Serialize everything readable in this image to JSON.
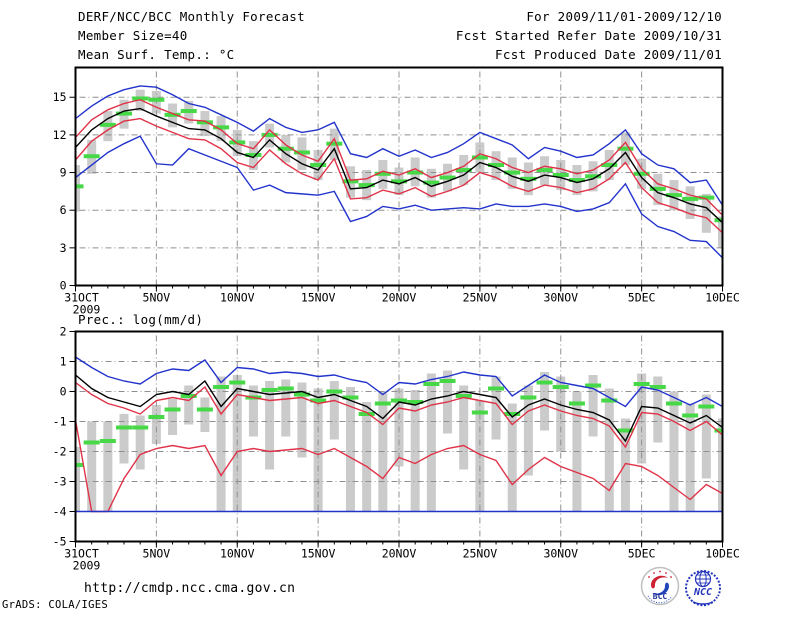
{
  "header": {
    "title": "DERF/NCC/BCC Monthly Forecast",
    "member_size": "Member Size=40",
    "top_var_label": "Mean Surf. Temp.: °C",
    "for_range": "For 2009/11/01-2009/12/10",
    "refer_date": "Fcst Started Refer Date 2009/10/31",
    "produced_date": "Fcst Produced Date 2009/11/01"
  },
  "bottom_var_label": "Prec.: log(mm/d)",
  "footer": {
    "url": "http://cmdp.ncc.cma.gov.cn",
    "grads_credit": "GrADS: COLA/IGES",
    "logo_bcc": "BCC",
    "logo_ncc": "NCC"
  },
  "colors": {
    "line_max_min": "#2233cc",
    "line_quartile": "#e03348",
    "line_mean": "#000000",
    "green_marker": "#46d846",
    "bar_fill": "#cbcbcb",
    "gridline": "#909090",
    "frame": "#000000"
  },
  "chart_data": [
    {
      "type": "line",
      "title": "Mean Surf. Temp.: °C",
      "x_start_label": "31OCT",
      "x_sub_label": "2009",
      "x_tick_days": [
        0,
        5,
        10,
        15,
        20,
        25,
        30,
        35,
        40
      ],
      "x_ticklabels": [
        "31OCT",
        "5NOV",
        "10NOV",
        "15NOV",
        "20NOV",
        "25NOV",
        "30NOV",
        "5DEC",
        "10DEC"
      ],
      "n_days": 41,
      "ylim": [
        0,
        17.37
      ],
      "yticks": [
        0,
        3,
        6,
        9,
        12,
        15
      ],
      "grid": true,
      "series": [
        {
          "name": "ensemble-max",
          "color": "blue",
          "values": [
            13.3,
            14.3,
            15.1,
            15.6,
            15.9,
            15.8,
            15.2,
            14.5,
            14.2,
            13.6,
            13.0,
            12.3,
            13.3,
            12.6,
            12.2,
            12.4,
            13.0,
            10.5,
            10.2,
            10.9,
            10.3,
            10.8,
            10.2,
            10.6,
            11.3,
            12.2,
            11.7,
            11.2,
            10.1,
            11.0,
            10.7,
            10.2,
            10.4,
            11.3,
            12.4,
            10.5,
            9.6,
            9.3,
            8.2,
            8.4,
            6.4
          ]
        },
        {
          "name": "upper-quartile",
          "color": "red",
          "values": [
            11.8,
            13.2,
            14.0,
            14.5,
            14.8,
            14.2,
            13.7,
            13.2,
            13.1,
            12.4,
            11.3,
            10.9,
            12.4,
            11.2,
            10.4,
            9.9,
            11.7,
            8.4,
            8.5,
            9.1,
            8.8,
            9.3,
            8.6,
            9.0,
            9.5,
            10.5,
            10.1,
            9.4,
            9.0,
            9.5,
            9.3,
            8.9,
            9.2,
            10.0,
            11.4,
            9.3,
            8.1,
            7.7,
            7.2,
            6.9,
            5.6
          ]
        },
        {
          "name": "ensemble-mean",
          "color": "black",
          "values": [
            11.0,
            12.4,
            13.3,
            13.9,
            14.1,
            13.5,
            13.0,
            12.5,
            12.4,
            11.7,
            10.6,
            10.2,
            11.6,
            10.5,
            9.7,
            9.2,
            10.9,
            7.7,
            7.8,
            8.4,
            8.1,
            8.6,
            7.9,
            8.3,
            8.8,
            9.8,
            9.4,
            8.7,
            8.3,
            8.8,
            8.6,
            8.2,
            8.5,
            9.3,
            10.6,
            8.6,
            7.4,
            7.0,
            6.5,
            6.2,
            5.0
          ]
        },
        {
          "name": "lower-quartile",
          "color": "red",
          "values": [
            10.0,
            11.5,
            12.4,
            13.1,
            13.3,
            12.7,
            12.2,
            11.7,
            11.6,
            10.9,
            9.8,
            9.4,
            10.8,
            9.7,
            8.9,
            8.4,
            10.1,
            6.9,
            7.0,
            7.6,
            7.3,
            7.8,
            7.1,
            7.5,
            8.0,
            9.0,
            8.6,
            7.9,
            7.5,
            8.0,
            7.8,
            7.4,
            7.7,
            8.5,
            9.8,
            7.8,
            6.6,
            6.2,
            5.7,
            5.4,
            4.2
          ]
        },
        {
          "name": "ensemble-min",
          "color": "blue",
          "values": [
            8.6,
            9.6,
            10.6,
            11.3,
            11.9,
            9.7,
            9.6,
            10.9,
            10.4,
            9.9,
            9.4,
            7.6,
            8.0,
            7.4,
            7.3,
            7.2,
            7.5,
            5.1,
            5.5,
            6.3,
            6.1,
            6.4,
            6.0,
            6.1,
            6.2,
            6.1,
            6.5,
            6.3,
            6.3,
            6.5,
            6.3,
            5.9,
            6.1,
            6.6,
            8.1,
            5.7,
            4.7,
            4.3,
            3.6,
            3.5,
            2.2
          ]
        }
      ],
      "bars": {
        "name": "ensemble-spread-bar",
        "top": [
          9.6,
          11.6,
          13.9,
          14.8,
          15.6,
          15.5,
          14.5,
          14.7,
          13.9,
          13.5,
          12.4,
          11.5,
          12.9,
          12.0,
          11.8,
          10.8,
          12.5,
          9.5,
          9.2,
          10.0,
          9.4,
          10.2,
          9.3,
          9.7,
          10.4,
          11.4,
          10.7,
          10.2,
          9.8,
          10.3,
          10.0,
          9.6,
          9.9,
          10.8,
          12.2,
          10.1,
          8.9,
          8.4,
          7.9,
          7.3,
          5.5
        ],
        "bottom": [
          5.9,
          8.9,
          11.5,
          12.5,
          13.9,
          13.7,
          12.6,
          12.9,
          11.9,
          11.5,
          10.3,
          9.2,
          11.0,
          9.8,
          9.2,
          8.4,
          10.0,
          7.0,
          6.8,
          7.7,
          7.2,
          7.9,
          7.0,
          7.5,
          8.0,
          9.0,
          8.4,
          7.7,
          7.2,
          8.0,
          7.6,
          7.2,
          7.5,
          8.4,
          9.6,
          7.7,
          6.4,
          6.0,
          5.3,
          4.2,
          3.0
        ]
      },
      "green_dash": {
        "name": "best-estimate-marker",
        "values": [
          7.9,
          10.3,
          12.8,
          13.7,
          14.9,
          14.8,
          13.6,
          13.9,
          13.0,
          12.6,
          11.4,
          10.4,
          12.0,
          10.9,
          10.6,
          9.6,
          11.3,
          8.3,
          8.0,
          8.9,
          8.3,
          9.0,
          8.2,
          8.6,
          9.2,
          10.2,
          9.6,
          9.0,
          8.5,
          9.2,
          8.8,
          8.4,
          8.7,
          9.6,
          10.9,
          8.9,
          7.7,
          7.2,
          6.9,
          7.0,
          5.2
        ]
      }
    },
    {
      "type": "line",
      "title": "Prec.: log(mm/d)",
      "x_start_label": "31OCT",
      "x_sub_label": "2009",
      "x_tick_days": [
        0,
        5,
        10,
        15,
        20,
        25,
        30,
        35,
        40
      ],
      "x_ticklabels": [
        "31OCT",
        "5NOV",
        "10NOV",
        "15NOV",
        "20NOV",
        "25NOV",
        "30NOV",
        "5DEC",
        "10DEC"
      ],
      "n_days": 41,
      "ylim": [
        -5,
        2
      ],
      "yticks": [
        -5,
        -4,
        -3,
        -2,
        -1,
        0,
        1,
        2
      ],
      "grid": true,
      "series": [
        {
          "name": "ensemble-max",
          "color": "blue",
          "values": [
            1.15,
            0.8,
            0.5,
            0.35,
            0.25,
            0.6,
            0.75,
            0.7,
            1.05,
            0.3,
            0.8,
            0.75,
            0.6,
            0.65,
            0.6,
            0.5,
            0.55,
            0.4,
            0.3,
            -0.1,
            0.3,
            0.25,
            0.4,
            0.5,
            0.65,
            0.55,
            0.5,
            -0.15,
            0.2,
            0.55,
            0.3,
            0.2,
            0.1,
            -0.2,
            -0.5,
            0.15,
            0.05,
            -0.2,
            -0.45,
            -0.2,
            -0.5
          ]
        },
        {
          "name": "ensemble-mean",
          "color": "black",
          "values": [
            0.55,
            0.1,
            -0.2,
            -0.35,
            -0.5,
            -0.1,
            0.0,
            -0.1,
            0.35,
            -0.5,
            0.1,
            0.0,
            -0.1,
            -0.05,
            0.0,
            -0.2,
            -0.1,
            -0.3,
            -0.5,
            -0.9,
            -0.35,
            -0.45,
            -0.25,
            -0.15,
            0.0,
            -0.1,
            -0.2,
            -0.85,
            -0.45,
            -0.25,
            -0.45,
            -0.6,
            -0.7,
            -0.95,
            -1.65,
            -0.5,
            -0.55,
            -0.8,
            -1.05,
            -0.8,
            -1.2
          ]
        },
        {
          "name": "upper-quartile",
          "color": "red",
          "values": [
            0.3,
            -0.1,
            -0.4,
            -0.55,
            -0.75,
            -0.3,
            -0.2,
            -0.3,
            0.15,
            -0.75,
            -0.1,
            -0.2,
            -0.3,
            -0.25,
            -0.2,
            -0.4,
            -0.3,
            -0.5,
            -0.7,
            -1.1,
            -0.55,
            -0.65,
            -0.45,
            -0.35,
            -0.2,
            -0.3,
            -0.4,
            -1.1,
            -0.65,
            -0.45,
            -0.65,
            -0.8,
            -0.9,
            -1.15,
            -1.85,
            -0.7,
            -0.75,
            -1.0,
            -1.3,
            -1.0,
            -1.45
          ]
        },
        {
          "name": "lower-quartile",
          "color": "red",
          "values": [
            -0.95,
            -4.0,
            -4.0,
            -2.9,
            -2.1,
            -1.9,
            -1.8,
            -1.9,
            -1.8,
            -2.8,
            -2.0,
            -1.9,
            -2.0,
            -1.95,
            -1.9,
            -2.1,
            -1.9,
            -2.2,
            -2.5,
            -2.9,
            -2.2,
            -2.4,
            -2.1,
            -1.9,
            -1.8,
            -2.1,
            -2.3,
            -3.1,
            -2.6,
            -2.2,
            -2.5,
            -2.7,
            -2.9,
            -3.3,
            -2.4,
            -2.5,
            -2.8,
            -3.2,
            -3.6,
            -3.1,
            -3.4
          ]
        },
        {
          "name": "ensemble-min",
          "color": "blue",
          "values": [
            -4.0,
            -4.0,
            -4.0,
            -4.0,
            -4.0,
            -4.0,
            -4.0,
            -4.0,
            -4.0,
            -4.0,
            -4.0,
            -4.0,
            -4.0,
            -4.0,
            -4.0,
            -4.0,
            -4.0,
            -4.0,
            -4.0,
            -4.0,
            -4.0,
            -4.0,
            -4.0,
            -4.0,
            -4.0,
            -4.0,
            -4.0,
            -4.0,
            -4.0,
            -4.0,
            -4.0,
            -4.0,
            -4.0,
            -4.0,
            -4.0,
            -4.0,
            -4.0,
            -4.0,
            -4.0,
            -4.0,
            -4.0
          ]
        }
      ],
      "bars": {
        "name": "ensemble-spread-bar",
        "top": [
          -1.85,
          -1.0,
          -1.0,
          -0.75,
          -0.8,
          -0.45,
          -0.25,
          0.2,
          -0.2,
          0.5,
          0.55,
          0.2,
          0.35,
          0.4,
          0.3,
          0.1,
          0.35,
          0.15,
          -0.35,
          0.0,
          0.1,
          0.05,
          0.6,
          0.7,
          0.2,
          -0.3,
          0.5,
          -0.4,
          0.2,
          0.65,
          0.5,
          0.0,
          0.55,
          0.1,
          -0.9,
          0.6,
          0.5,
          0.0,
          -0.4,
          -0.1,
          -0.9
        ],
        "bottom": [
          -4.0,
          -4.0,
          -4.0,
          -2.4,
          -2.6,
          -1.75,
          -1.45,
          -1.1,
          -1.35,
          -4.0,
          -4.0,
          -1.5,
          -2.6,
          -1.5,
          -2.2,
          -4.0,
          -1.6,
          -4.0,
          -4.0,
          -4.0,
          -2.5,
          -4.0,
          -4.0,
          -1.4,
          -2.6,
          -4.0,
          -1.6,
          -4.0,
          -2.8,
          -1.3,
          -2.0,
          -4.0,
          -1.5,
          -4.0,
          -4.0,
          -2.4,
          -1.7,
          -4.0,
          -4.0,
          -2.9,
          -4.0
        ]
      },
      "green_dash": {
        "name": "best-estimate-marker",
        "values": [
          -2.45,
          -1.7,
          -1.65,
          -1.2,
          -1.2,
          -0.85,
          -0.6,
          -0.15,
          -0.6,
          0.15,
          0.3,
          -0.2,
          0.05,
          0.1,
          -0.1,
          -0.3,
          0.0,
          -0.2,
          -0.75,
          -0.4,
          -0.3,
          -0.35,
          0.25,
          0.35,
          -0.15,
          -0.7,
          0.1,
          -0.75,
          -0.2,
          0.3,
          0.15,
          -0.4,
          0.2,
          -0.3,
          -1.3,
          0.25,
          0.15,
          -0.4,
          -0.8,
          -0.5,
          -1.3
        ]
      }
    }
  ]
}
